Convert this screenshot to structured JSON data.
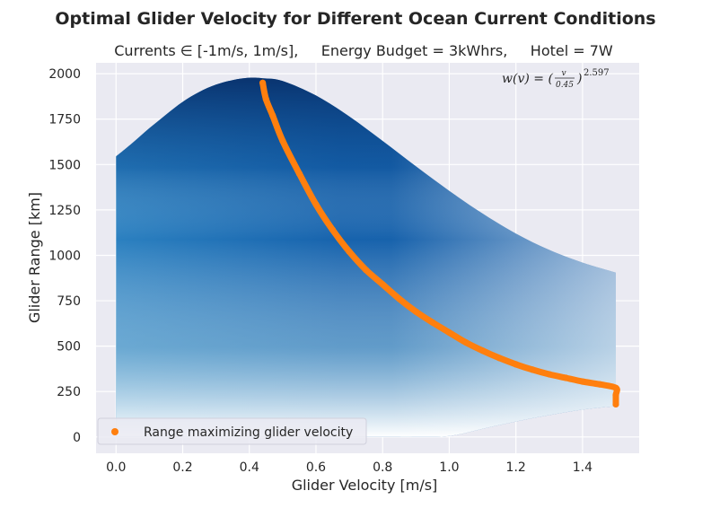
{
  "chart_data": {
    "type": "area",
    "title": "Optimal Glider Velocity for Different Ocean Current Conditions",
    "subtitle": "Currents ∈ [-1m/s, 1m/s],     Energy Budget = 3kWhrs,     Hotel = 7W",
    "xlabel": "Glider Velocity [m/s]",
    "ylabel": "Glider Range [km]",
    "xlim": [
      -0.06,
      1.57
    ],
    "ylim": [
      -90,
      2060
    ],
    "xticks": [
      0.0,
      0.2,
      0.4,
      0.6,
      0.8,
      1.0,
      1.2,
      1.4
    ],
    "xtick_labels": [
      "0.0",
      "0.2",
      "0.4",
      "0.6",
      "0.8",
      "1.0",
      "1.2",
      "1.4"
    ],
    "yticks": [
      0,
      250,
      500,
      750,
      1000,
      1250,
      1500,
      1750,
      2000
    ],
    "ytick_labels": [
      "0",
      "250",
      "500",
      "750",
      "1000",
      "1250",
      "1500",
      "1750",
      "2000"
    ],
    "grid": true,
    "legend": {
      "position": "lower-left",
      "entries": [
        "Range maximizing glider velocity"
      ]
    },
    "annotation": {
      "lhs": "w(v) = (",
      "frac_num": "v",
      "frac_den": "0.45",
      "rhs": ")",
      "exponent": "2.597"
    },
    "region_upper": {
      "x": [
        0.0,
        0.05,
        0.1,
        0.15,
        0.2,
        0.25,
        0.3,
        0.35,
        0.4,
        0.44,
        0.5,
        0.6,
        0.7,
        0.8,
        0.9,
        1.0,
        1.1,
        1.2,
        1.3,
        1.4,
        1.5
      ],
      "y": [
        1545,
        1620,
        1700,
        1775,
        1845,
        1900,
        1940,
        1965,
        1978,
        1975,
        1960,
        1880,
        1765,
        1630,
        1490,
        1355,
        1230,
        1120,
        1030,
        960,
        905
      ]
    },
    "region_lower": {
      "x": [
        0.0,
        0.2,
        0.4,
        0.6,
        0.8,
        0.9,
        1.0,
        1.1,
        1.2,
        1.3,
        1.4,
        1.5
      ],
      "y": [
        0,
        0,
        0,
        0,
        0,
        0,
        5,
        45,
        85,
        120,
        150,
        170
      ]
    },
    "series": [
      {
        "name": "Range maximizing glider velocity",
        "color": "#ff7f0e",
        "x": [
          0.44,
          0.45,
          0.47,
          0.5,
          0.55,
          0.6,
          0.65,
          0.7,
          0.75,
          0.8,
          0.85,
          0.9,
          0.95,
          1.0,
          1.05,
          1.1,
          1.15,
          1.2,
          1.25,
          1.3,
          1.35,
          1.4,
          1.45,
          1.5,
          1.5,
          1.5
        ],
        "y": [
          1950,
          1860,
          1770,
          1630,
          1450,
          1280,
          1140,
          1020,
          920,
          840,
          760,
          690,
          630,
          575,
          520,
          475,
          435,
          400,
          370,
          345,
          325,
          305,
          290,
          270,
          230,
          180
        ]
      }
    ],
    "colors": {
      "background": "#eaeaf2",
      "dark": "#08306b",
      "mid": "#2171b5",
      "light": "#9ecae1",
      "orange": "#ff7f0e"
    }
  }
}
